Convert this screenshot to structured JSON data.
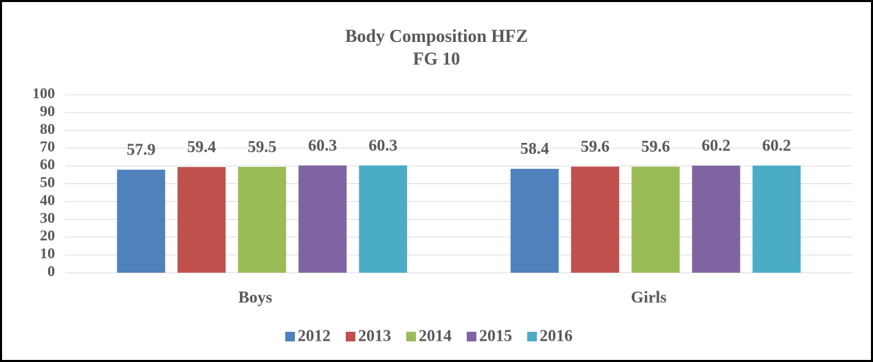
{
  "chart_data": {
    "type": "bar",
    "title": "Body Composition HFZ",
    "subtitle": "FG 10",
    "categories": [
      "Boys",
      "Girls"
    ],
    "series": [
      {
        "name": "2012",
        "color": "#4f81bd",
        "values": [
          57.9,
          58.4
        ]
      },
      {
        "name": "2013",
        "color": "#c0504d",
        "values": [
          59.4,
          59.6
        ]
      },
      {
        "name": "2014",
        "color": "#9bbb59",
        "values": [
          59.5,
          59.6
        ]
      },
      {
        "name": "2015",
        "color": "#8064a2",
        "values": [
          60.3,
          60.2
        ]
      },
      {
        "name": "2016",
        "color": "#4bacc6",
        "values": [
          60.3,
          60.2
        ]
      }
    ],
    "ylim": [
      0,
      100
    ],
    "yticks": [
      0,
      10,
      20,
      30,
      40,
      50,
      60,
      70,
      80,
      90,
      100
    ],
    "grid": true,
    "legend": "bottom"
  }
}
